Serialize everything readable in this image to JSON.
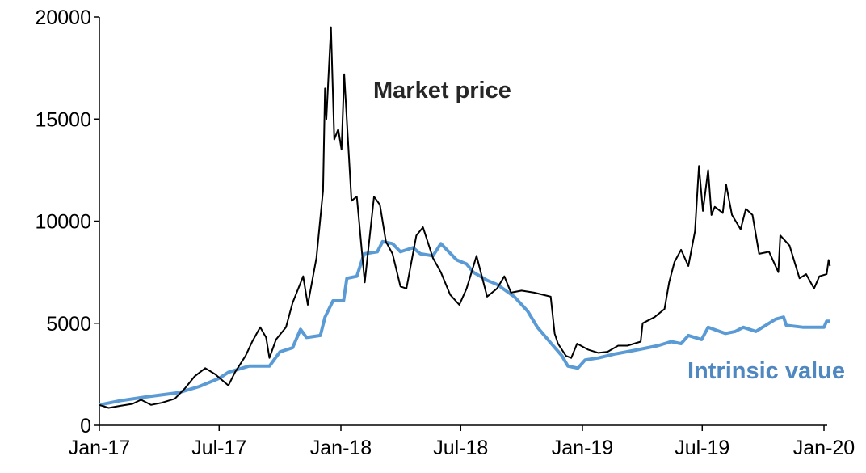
{
  "chart_data": {
    "type": "line",
    "title": "",
    "xlabel": "",
    "ylabel": "",
    "ylim": [
      0,
      20000
    ],
    "xlim": [
      "2017-01-01",
      "2020-01-10"
    ],
    "grid": false,
    "y_ticks": [
      "0",
      "5000",
      "10000",
      "15000",
      "20000"
    ],
    "x_ticks": [
      "Jan-17",
      "Jul-17",
      "Jan-18",
      "Jul-18",
      "Jan-19",
      "Jul-19",
      "Jan-20"
    ],
    "x_tick_dates": [
      "2017-01-01",
      "2017-07-01",
      "2018-01-01",
      "2018-07-01",
      "2019-01-01",
      "2019-07-01",
      "2020-01-01"
    ],
    "series": [
      {
        "name": "Market price",
        "color": "#000000",
        "points": [
          [
            "2017-01-01",
            1000
          ],
          [
            "2017-01-15",
            850
          ],
          [
            "2017-02-01",
            950
          ],
          [
            "2017-02-20",
            1050
          ],
          [
            "2017-03-05",
            1250
          ],
          [
            "2017-03-20",
            1000
          ],
          [
            "2017-04-05",
            1100
          ],
          [
            "2017-04-25",
            1300
          ],
          [
            "2017-05-10",
            1800
          ],
          [
            "2017-05-25",
            2400
          ],
          [
            "2017-06-10",
            2800
          ],
          [
            "2017-06-25",
            2500
          ],
          [
            "2017-07-15",
            1950
          ],
          [
            "2017-07-25",
            2600
          ],
          [
            "2017-08-10",
            3400
          ],
          [
            "2017-08-20",
            4100
          ],
          [
            "2017-09-01",
            4800
          ],
          [
            "2017-09-10",
            4300
          ],
          [
            "2017-09-15",
            3300
          ],
          [
            "2017-09-25",
            4200
          ],
          [
            "2017-10-10",
            4800
          ],
          [
            "2017-10-20",
            6000
          ],
          [
            "2017-11-05",
            7300
          ],
          [
            "2017-11-12",
            5900
          ],
          [
            "2017-11-25",
            8200
          ],
          [
            "2017-12-05",
            11500
          ],
          [
            "2017-12-08",
            16500
          ],
          [
            "2017-12-10",
            15000
          ],
          [
            "2017-12-17",
            19500
          ],
          [
            "2017-12-22",
            14000
          ],
          [
            "2017-12-28",
            14500
          ],
          [
            "2018-01-02",
            13500
          ],
          [
            "2018-01-06",
            17200
          ],
          [
            "2018-01-12",
            13800
          ],
          [
            "2018-01-17",
            11000
          ],
          [
            "2018-01-25",
            11200
          ],
          [
            "2018-02-06",
            7000
          ],
          [
            "2018-02-20",
            11200
          ],
          [
            "2018-03-01",
            10800
          ],
          [
            "2018-03-10",
            9000
          ],
          [
            "2018-03-20",
            8400
          ],
          [
            "2018-04-01",
            6800
          ],
          [
            "2018-04-10",
            6700
          ],
          [
            "2018-04-25",
            9300
          ],
          [
            "2018-05-05",
            9700
          ],
          [
            "2018-05-20",
            8200
          ],
          [
            "2018-06-01",
            7500
          ],
          [
            "2018-06-15",
            6400
          ],
          [
            "2018-06-29",
            5900
          ],
          [
            "2018-07-10",
            6700
          ],
          [
            "2018-07-25",
            8300
          ],
          [
            "2018-08-10",
            6300
          ],
          [
            "2018-08-25",
            6700
          ],
          [
            "2018-09-05",
            7300
          ],
          [
            "2018-09-15",
            6500
          ],
          [
            "2018-10-01",
            6600
          ],
          [
            "2018-10-20",
            6500
          ],
          [
            "2018-11-14",
            6300
          ],
          [
            "2018-11-20",
            4500
          ],
          [
            "2018-11-25",
            4000
          ],
          [
            "2018-12-07",
            3400
          ],
          [
            "2018-12-15",
            3300
          ],
          [
            "2018-12-24",
            4000
          ],
          [
            "2019-01-10",
            3700
          ],
          [
            "2019-01-25",
            3550
          ],
          [
            "2019-02-08",
            3600
          ],
          [
            "2019-02-24",
            3900
          ],
          [
            "2019-03-10",
            3900
          ],
          [
            "2019-03-30",
            4100
          ],
          [
            "2019-04-02",
            5000
          ],
          [
            "2019-04-20",
            5300
          ],
          [
            "2019-05-05",
            5700
          ],
          [
            "2019-05-12",
            7000
          ],
          [
            "2019-05-20",
            8000
          ],
          [
            "2019-05-30",
            8600
          ],
          [
            "2019-06-10",
            7800
          ],
          [
            "2019-06-20",
            9500
          ],
          [
            "2019-06-26",
            12700
          ],
          [
            "2019-07-02",
            10500
          ],
          [
            "2019-07-10",
            12500
          ],
          [
            "2019-07-15",
            10300
          ],
          [
            "2019-07-20",
            10700
          ],
          [
            "2019-08-01",
            10400
          ],
          [
            "2019-08-06",
            11800
          ],
          [
            "2019-08-15",
            10300
          ],
          [
            "2019-08-28",
            9600
          ],
          [
            "2019-09-05",
            10600
          ],
          [
            "2019-09-15",
            10300
          ],
          [
            "2019-09-25",
            8400
          ],
          [
            "2019-10-10",
            8500
          ],
          [
            "2019-10-24",
            7500
          ],
          [
            "2019-10-27",
            9300
          ],
          [
            "2019-11-10",
            8800
          ],
          [
            "2019-11-25",
            7200
          ],
          [
            "2019-12-05",
            7400
          ],
          [
            "2019-12-17",
            6700
          ],
          [
            "2019-12-25",
            7300
          ],
          [
            "2020-01-05",
            7400
          ],
          [
            "2020-01-08",
            8100
          ],
          [
            "2020-01-10",
            7800
          ]
        ]
      },
      {
        "name": "Intrinsic value",
        "color": "#5b9bd5",
        "points": [
          [
            "2017-01-01",
            1000
          ],
          [
            "2017-02-01",
            1200
          ],
          [
            "2017-03-15",
            1400
          ],
          [
            "2017-05-01",
            1600
          ],
          [
            "2017-06-01",
            1900
          ],
          [
            "2017-07-01",
            2300
          ],
          [
            "2017-07-15",
            2600
          ],
          [
            "2017-08-15",
            2900
          ],
          [
            "2017-09-15",
            2900
          ],
          [
            "2017-10-01",
            3600
          ],
          [
            "2017-10-20",
            3800
          ],
          [
            "2017-11-01",
            4700
          ],
          [
            "2017-11-10",
            4300
          ],
          [
            "2017-12-01",
            4400
          ],
          [
            "2017-12-08",
            5300
          ],
          [
            "2017-12-20",
            6100
          ],
          [
            "2018-01-05",
            6100
          ],
          [
            "2018-01-10",
            7200
          ],
          [
            "2018-01-25",
            7300
          ],
          [
            "2018-02-05",
            8400
          ],
          [
            "2018-02-25",
            8500
          ],
          [
            "2018-03-05",
            9000
          ],
          [
            "2018-03-20",
            8900
          ],
          [
            "2018-04-01",
            8500
          ],
          [
            "2018-04-20",
            8700
          ],
          [
            "2018-05-01",
            8400
          ],
          [
            "2018-05-20",
            8300
          ],
          [
            "2018-06-01",
            8900
          ],
          [
            "2018-06-25",
            8100
          ],
          [
            "2018-07-10",
            7900
          ],
          [
            "2018-07-20",
            7500
          ],
          [
            "2018-08-10",
            7100
          ],
          [
            "2018-08-25",
            6900
          ],
          [
            "2018-09-20",
            6300
          ],
          [
            "2018-10-10",
            5600
          ],
          [
            "2018-10-25",
            4800
          ],
          [
            "2018-11-15",
            4000
          ],
          [
            "2018-12-01",
            3400
          ],
          [
            "2018-12-10",
            2900
          ],
          [
            "2018-12-25",
            2800
          ],
          [
            "2019-01-05",
            3200
          ],
          [
            "2019-01-25",
            3300
          ],
          [
            "2019-02-20",
            3500
          ],
          [
            "2019-03-25",
            3700
          ],
          [
            "2019-04-25",
            3900
          ],
          [
            "2019-05-15",
            4100
          ],
          [
            "2019-05-30",
            4000
          ],
          [
            "2019-06-10",
            4400
          ],
          [
            "2019-06-30",
            4200
          ],
          [
            "2019-07-10",
            4800
          ],
          [
            "2019-08-05",
            4500
          ],
          [
            "2019-08-20",
            4600
          ],
          [
            "2019-09-01",
            4800
          ],
          [
            "2019-09-20",
            4600
          ],
          [
            "2019-10-05",
            4900
          ],
          [
            "2019-10-20",
            5200
          ],
          [
            "2019-11-01",
            5300
          ],
          [
            "2019-11-05",
            4900
          ],
          [
            "2019-12-01",
            4800
          ],
          [
            "2020-01-01",
            4800
          ],
          [
            "2020-01-05",
            5100
          ],
          [
            "2020-01-10",
            5100
          ]
        ]
      }
    ],
    "annotations": {
      "market_price": "Market price",
      "intrinsic_value": "Intrinsic value"
    },
    "annotation_colors": {
      "market_price": "#262626",
      "intrinsic_value": "#4f87c0"
    }
  }
}
